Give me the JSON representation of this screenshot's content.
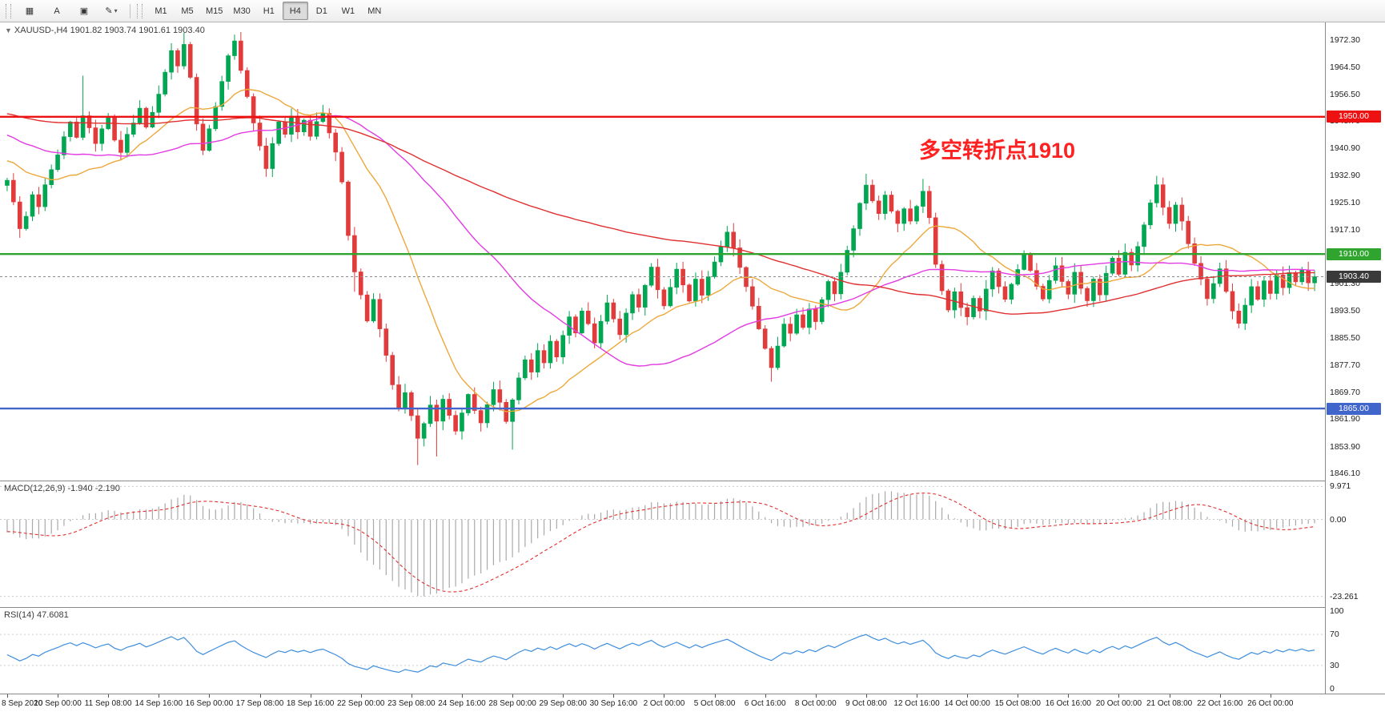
{
  "toolbar": {
    "icons": [
      {
        "name": "chart-window-icon",
        "glyph": "▦"
      },
      {
        "name": "text-label-icon",
        "glyph": "A"
      },
      {
        "name": "template-icon",
        "glyph": "▣"
      },
      {
        "name": "colors-icon",
        "glyph": "✎",
        "caret": "▾"
      }
    ],
    "timeframes": [
      {
        "label": "M1",
        "active": false
      },
      {
        "label": "M5",
        "active": false
      },
      {
        "label": "M15",
        "active": false
      },
      {
        "label": "M30",
        "active": false
      },
      {
        "label": "H1",
        "active": false
      },
      {
        "label": "H4",
        "active": true
      },
      {
        "label": "D1",
        "active": false
      },
      {
        "label": "W1",
        "active": false
      },
      {
        "label": "MN",
        "active": false
      }
    ]
  },
  "symbol_header": {
    "collapse_icon": "▼",
    "text": "XAUUSD-,H4  1901.82 1903.74 1901.61 1903.40"
  },
  "main_chart": {
    "annotation": {
      "text": "多空转折点1910",
      "color": "#ff2121"
    },
    "levels": [
      {
        "value": 1950.0,
        "label": "1950.00",
        "color": "#ee1111"
      },
      {
        "value": 1910.0,
        "label": "1910.00",
        "color": "#2fa52f"
      },
      {
        "value": 1865.0,
        "label": "1865.00",
        "color": "#4066cc"
      }
    ],
    "current_price": {
      "value": 1903.4,
      "label": "1903.40",
      "badge_bg": "#3a3a3a",
      "line_color": "#8c8c8c"
    },
    "price_axis_labels": [
      "1972.30",
      "1964.50",
      "1956.50",
      "1948.70",
      "1940.90",
      "1932.90",
      "1925.10",
      "1917.10",
      "1909.30",
      "1901.30",
      "1893.50",
      "1885.50",
      "1877.70",
      "1869.70",
      "1861.90",
      "1853.90",
      "1846.10"
    ],
    "price_range": [
      1844.0,
      1977.5
    ],
    "colors": {
      "up": "#00A651",
      "down": "#E13B3B",
      "ma_fast": "#EDA83C",
      "ma_mid": "#E23CE2",
      "ma_slow": "#E03030"
    }
  },
  "chart_data": {
    "type": "candlestick",
    "symbol": "XAUUSD-",
    "timeframe": "H4",
    "last_ohlc": {
      "open": 1901.82,
      "high": 1903.74,
      "low": 1901.61,
      "close": 1903.4
    },
    "bars_per_label": 8,
    "x_labels": [
      "8 Sep 2020",
      "10 Sep 00:00",
      "11 Sep 08:00",
      "14 Sep 16:00",
      "16 Sep 00:00",
      "17 Sep 08:00",
      "18 Sep 16:00",
      "22 Sep 00:00",
      "23 Sep 08:00",
      "24 Sep 16:00",
      "28 Sep 00:00",
      "29 Sep 08:00",
      "30 Sep 16:00",
      "2 Oct 00:00",
      "5 Oct 08:00",
      "6 Oct 16:00",
      "8 Oct 00:00",
      "9 Oct 08:00",
      "12 Oct 16:00",
      "14 Oct 00:00",
      "15 Oct 08:00",
      "16 Oct 16:00",
      "20 Oct 00:00",
      "21 Oct 08:00",
      "22 Oct 16:00",
      "26 Oct 00:00"
    ],
    "closes": [
      1931.5,
      1925.2,
      1917.4,
      1921.0,
      1927.3,
      1923.8,
      1930.2,
      1934.6,
      1938.9,
      1944.2,
      1948.5,
      1944.0,
      1950.3,
      1946.8,
      1942.2,
      1946.5,
      1949.8,
      1943.2,
      1939.6,
      1944.9,
      1948.2,
      1952.5,
      1947.0,
      1951.3,
      1956.6,
      1963.0,
      1969.3,
      1964.8,
      1971.1,
      1961.5,
      1947.9,
      1940.2,
      1946.5,
      1953.0,
      1960.3,
      1967.8,
      1972.1,
      1963.5,
      1955.9,
      1948.2,
      1941.5,
      1934.9,
      1942.2,
      1948.5,
      1944.9,
      1950.2,
      1945.6,
      1949.0,
      1944.3,
      1948.6,
      1951.0,
      1945.3,
      1939.7,
      1931.0,
      1915.4,
      1904.8,
      1898.1,
      1890.5,
      1896.8,
      1888.2,
      1880.5,
      1871.9,
      1865.2,
      1869.6,
      1862.9,
      1856.3,
      1860.6,
      1866.0,
      1861.3,
      1867.7,
      1863.0,
      1858.4,
      1863.7,
      1869.1,
      1864.4,
      1860.8,
      1866.1,
      1870.5,
      1866.8,
      1861.2,
      1867.5,
      1873.9,
      1879.2,
      1875.6,
      1881.9,
      1878.3,
      1884.6,
      1880.0,
      1886.3,
      1891.7,
      1887.0,
      1893.4,
      1889.7,
      1884.1,
      1890.4,
      1895.8,
      1891.1,
      1886.5,
      1892.8,
      1898.2,
      1894.5,
      1900.9,
      1906.2,
      1899.6,
      1894.9,
      1900.3,
      1905.6,
      1901.0,
      1896.3,
      1902.7,
      1898.0,
      1903.4,
      1907.7,
      1912.1,
      1916.4,
      1911.8,
      1906.1,
      1900.5,
      1894.8,
      1888.2,
      1882.5,
      1876.9,
      1883.2,
      1889.6,
      1886.9,
      1892.3,
      1888.6,
      1894.0,
      1890.3,
      1896.7,
      1902.0,
      1898.4,
      1904.7,
      1911.1,
      1917.4,
      1924.8,
      1930.1,
      1925.5,
      1921.8,
      1927.2,
      1922.5,
      1918.9,
      1923.2,
      1919.6,
      1923.9,
      1928.3,
      1920.6,
      1907.0,
      1899.3,
      1893.7,
      1899.0,
      1894.4,
      1891.7,
      1897.1,
      1893.4,
      1899.8,
      1905.1,
      1900.5,
      1896.8,
      1901.2,
      1905.5,
      1909.9,
      1905.2,
      1900.6,
      1896.9,
      1902.3,
      1906.6,
      1902.0,
      1898.3,
      1904.7,
      1900.0,
      1896.4,
      1902.7,
      1898.1,
      1904.4,
      1908.8,
      1904.1,
      1910.5,
      1906.8,
      1912.2,
      1918.5,
      1924.9,
      1930.2,
      1923.6,
      1918.9,
      1924.3,
      1919.6,
      1913.0,
      1907.3,
      1902.7,
      1897.0,
      1901.4,
      1905.7,
      1899.1,
      1893.4,
      1889.8,
      1895.1,
      1900.5,
      1896.8,
      1902.2,
      1898.5,
      1903.9,
      1900.2,
      1904.6,
      1901.9,
      1905.3,
      1901.6,
      1903.4
    ],
    "pre_closes": [
      1972,
      1968,
      1975,
      1970,
      1964,
      1969,
      1973,
      1966,
      1960,
      1965,
      1970,
      1962,
      1956,
      1961,
      1966,
      1958,
      1963,
      1968,
      1960,
      1954,
      1959,
      1964,
      1957,
      1951,
      1956,
      1961,
      1953,
      1948,
      1953,
      1958,
      1950,
      1945,
      1950,
      1955,
      1947,
      1942,
      1947,
      1952,
      1944,
      1940,
      1945,
      1950,
      1943,
      1938,
      1943,
      1948,
      1941,
      1936,
      1941,
      1946,
      1939,
      1934,
      1939,
      1944,
      1937,
      1933,
      1938,
      1943,
      1936,
      1931,
      1936,
      1941,
      1934,
      1930
    ],
    "wick_overrides": {
      "12": {
        "high": 1962.0
      },
      "28": {
        "high": 1974.5
      },
      "36": {
        "high": 1973.8
      },
      "41": {
        "low": 1932.5
      },
      "55": {
        "low": 1899.0
      },
      "65": {
        "low": 1848.5
      },
      "68": {
        "low": 1851.0
      },
      "80": {
        "low": 1853.0
      },
      "121": {
        "low": 1872.8
      },
      "136": {
        "high": 1933.4
      },
      "145": {
        "high": 1931.9
      },
      "182": {
        "high": 1932.8
      }
    },
    "ma_periods": {
      "fast": 18,
      "mid": 45,
      "slow": 105
    },
    "macd": {
      "params": "12,26,9",
      "label": "MACD(12,26,9) -1.940 -2.190",
      "axis_labels": [
        "9.971",
        "0.00",
        "-23.261"
      ],
      "axis_values": [
        9.971,
        0,
        -23.261
      ],
      "vmax": 11.5,
      "vmin": -26.5,
      "hist_color": "#A9A9A9",
      "signal_color": "#E03030"
    },
    "rsi": {
      "period": 14,
      "label": "RSI(14) 47.6081",
      "axis_labels": [
        "100",
        "70",
        "30",
        "0"
      ],
      "axis_values": [
        100,
        70,
        30,
        0
      ],
      "guide_levels": [
        70,
        30
      ],
      "line_color": "#3E8EDE"
    }
  }
}
